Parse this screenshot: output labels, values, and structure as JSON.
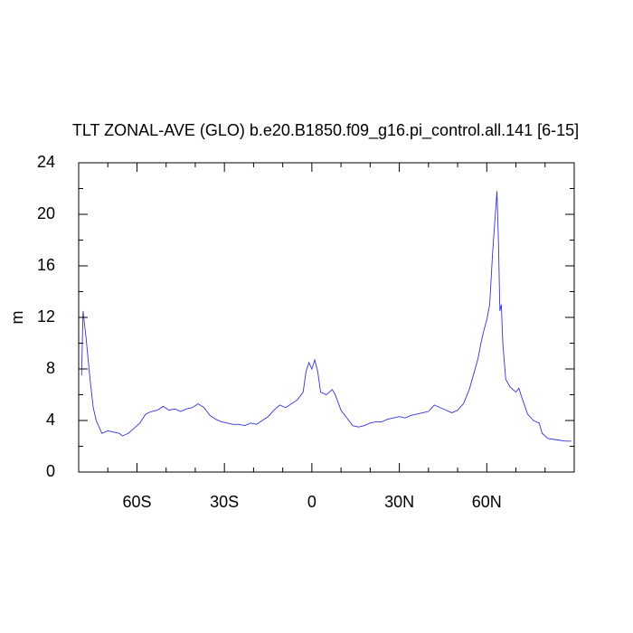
{
  "chart_data": {
    "type": "line",
    "title": "TLT ZONAL-AVE (GLO) b.e20.B1850.f09_g16.pi_control.all.141 [6-15]",
    "ylabel": "m",
    "xlim": [
      -80,
      90
    ],
    "ylim": [
      0,
      24
    ],
    "xticks": [
      {
        "value": -60,
        "label": "60S"
      },
      {
        "value": -30,
        "label": "30S"
      },
      0,
      {
        "value": 30,
        "label": "30N"
      },
      {
        "value": 60,
        "label": "60N"
      }
    ],
    "xminorticks": [
      -80,
      -70,
      -50,
      -40,
      -20,
      -10,
      10,
      20,
      40,
      50,
      70,
      80,
      90
    ],
    "yticks": [
      0,
      4,
      8,
      12,
      16,
      20,
      24
    ],
    "yminorticks": [
      2,
      6,
      10,
      14,
      18,
      22
    ],
    "series": [
      {
        "name": "TLT",
        "color": "#3333dd",
        "x": [
          -79,
          -78.5,
          -77.5,
          -76,
          -75,
          -74,
          -73,
          -72,
          -70,
          -68,
          -66,
          -65,
          -63,
          -61,
          -59,
          -57,
          -55,
          -53,
          -51,
          -49,
          -47,
          -45,
          -43,
          -41,
          -39,
          -37,
          -35,
          -33,
          -31,
          -29,
          -27,
          -25,
          -23,
          -21,
          -19,
          -17,
          -15,
          -13,
          -11,
          -9,
          -7,
          -5,
          -3,
          -2,
          -1,
          0,
          1,
          2,
          3,
          5,
          7,
          8,
          10,
          12,
          14,
          16,
          18,
          20,
          22,
          24,
          26,
          28,
          30,
          32,
          34,
          36,
          38,
          40,
          42,
          44,
          46,
          48,
          50,
          52,
          54,
          56,
          57,
          58,
          59,
          60,
          61,
          62,
          63.5,
          64,
          64.5,
          65,
          65.5,
          66.5,
          68,
          70,
          71,
          72,
          74,
          76,
          78,
          79,
          81,
          84,
          87,
          89
        ],
        "values": [
          7.5,
          12.5,
          10.5,
          7,
          5,
          4,
          3.5,
          3.0,
          3.2,
          3.1,
          3.0,
          2.8,
          3.0,
          3.4,
          3.8,
          4.5,
          4.7,
          4.8,
          5.1,
          4.8,
          4.9,
          4.7,
          4.9,
          5.0,
          5.3,
          5.0,
          4.4,
          4.1,
          3.9,
          3.8,
          3.7,
          3.7,
          3.6,
          3.8,
          3.7,
          4.0,
          4.3,
          4.8,
          5.2,
          5.0,
          5.3,
          5.6,
          6.2,
          7.8,
          8.5,
          8.0,
          8.7,
          7.8,
          6.2,
          6.0,
          6.4,
          6.0,
          4.8,
          4.2,
          3.6,
          3.5,
          3.6,
          3.8,
          3.9,
          3.9,
          4.1,
          4.2,
          4.3,
          4.2,
          4.4,
          4.5,
          4.6,
          4.7,
          5.2,
          5.0,
          4.8,
          4.6,
          4.8,
          5.3,
          6.4,
          8.0,
          8.8,
          10.0,
          11.0,
          11.8,
          13.0,
          17.0,
          21.8,
          18.0,
          12.5,
          13.0,
          10.0,
          7.2,
          6.6,
          6.2,
          6.5,
          5.8,
          4.5,
          4.0,
          3.8,
          3.0,
          2.6,
          2.5,
          2.4,
          2.4
        ]
      }
    ]
  }
}
